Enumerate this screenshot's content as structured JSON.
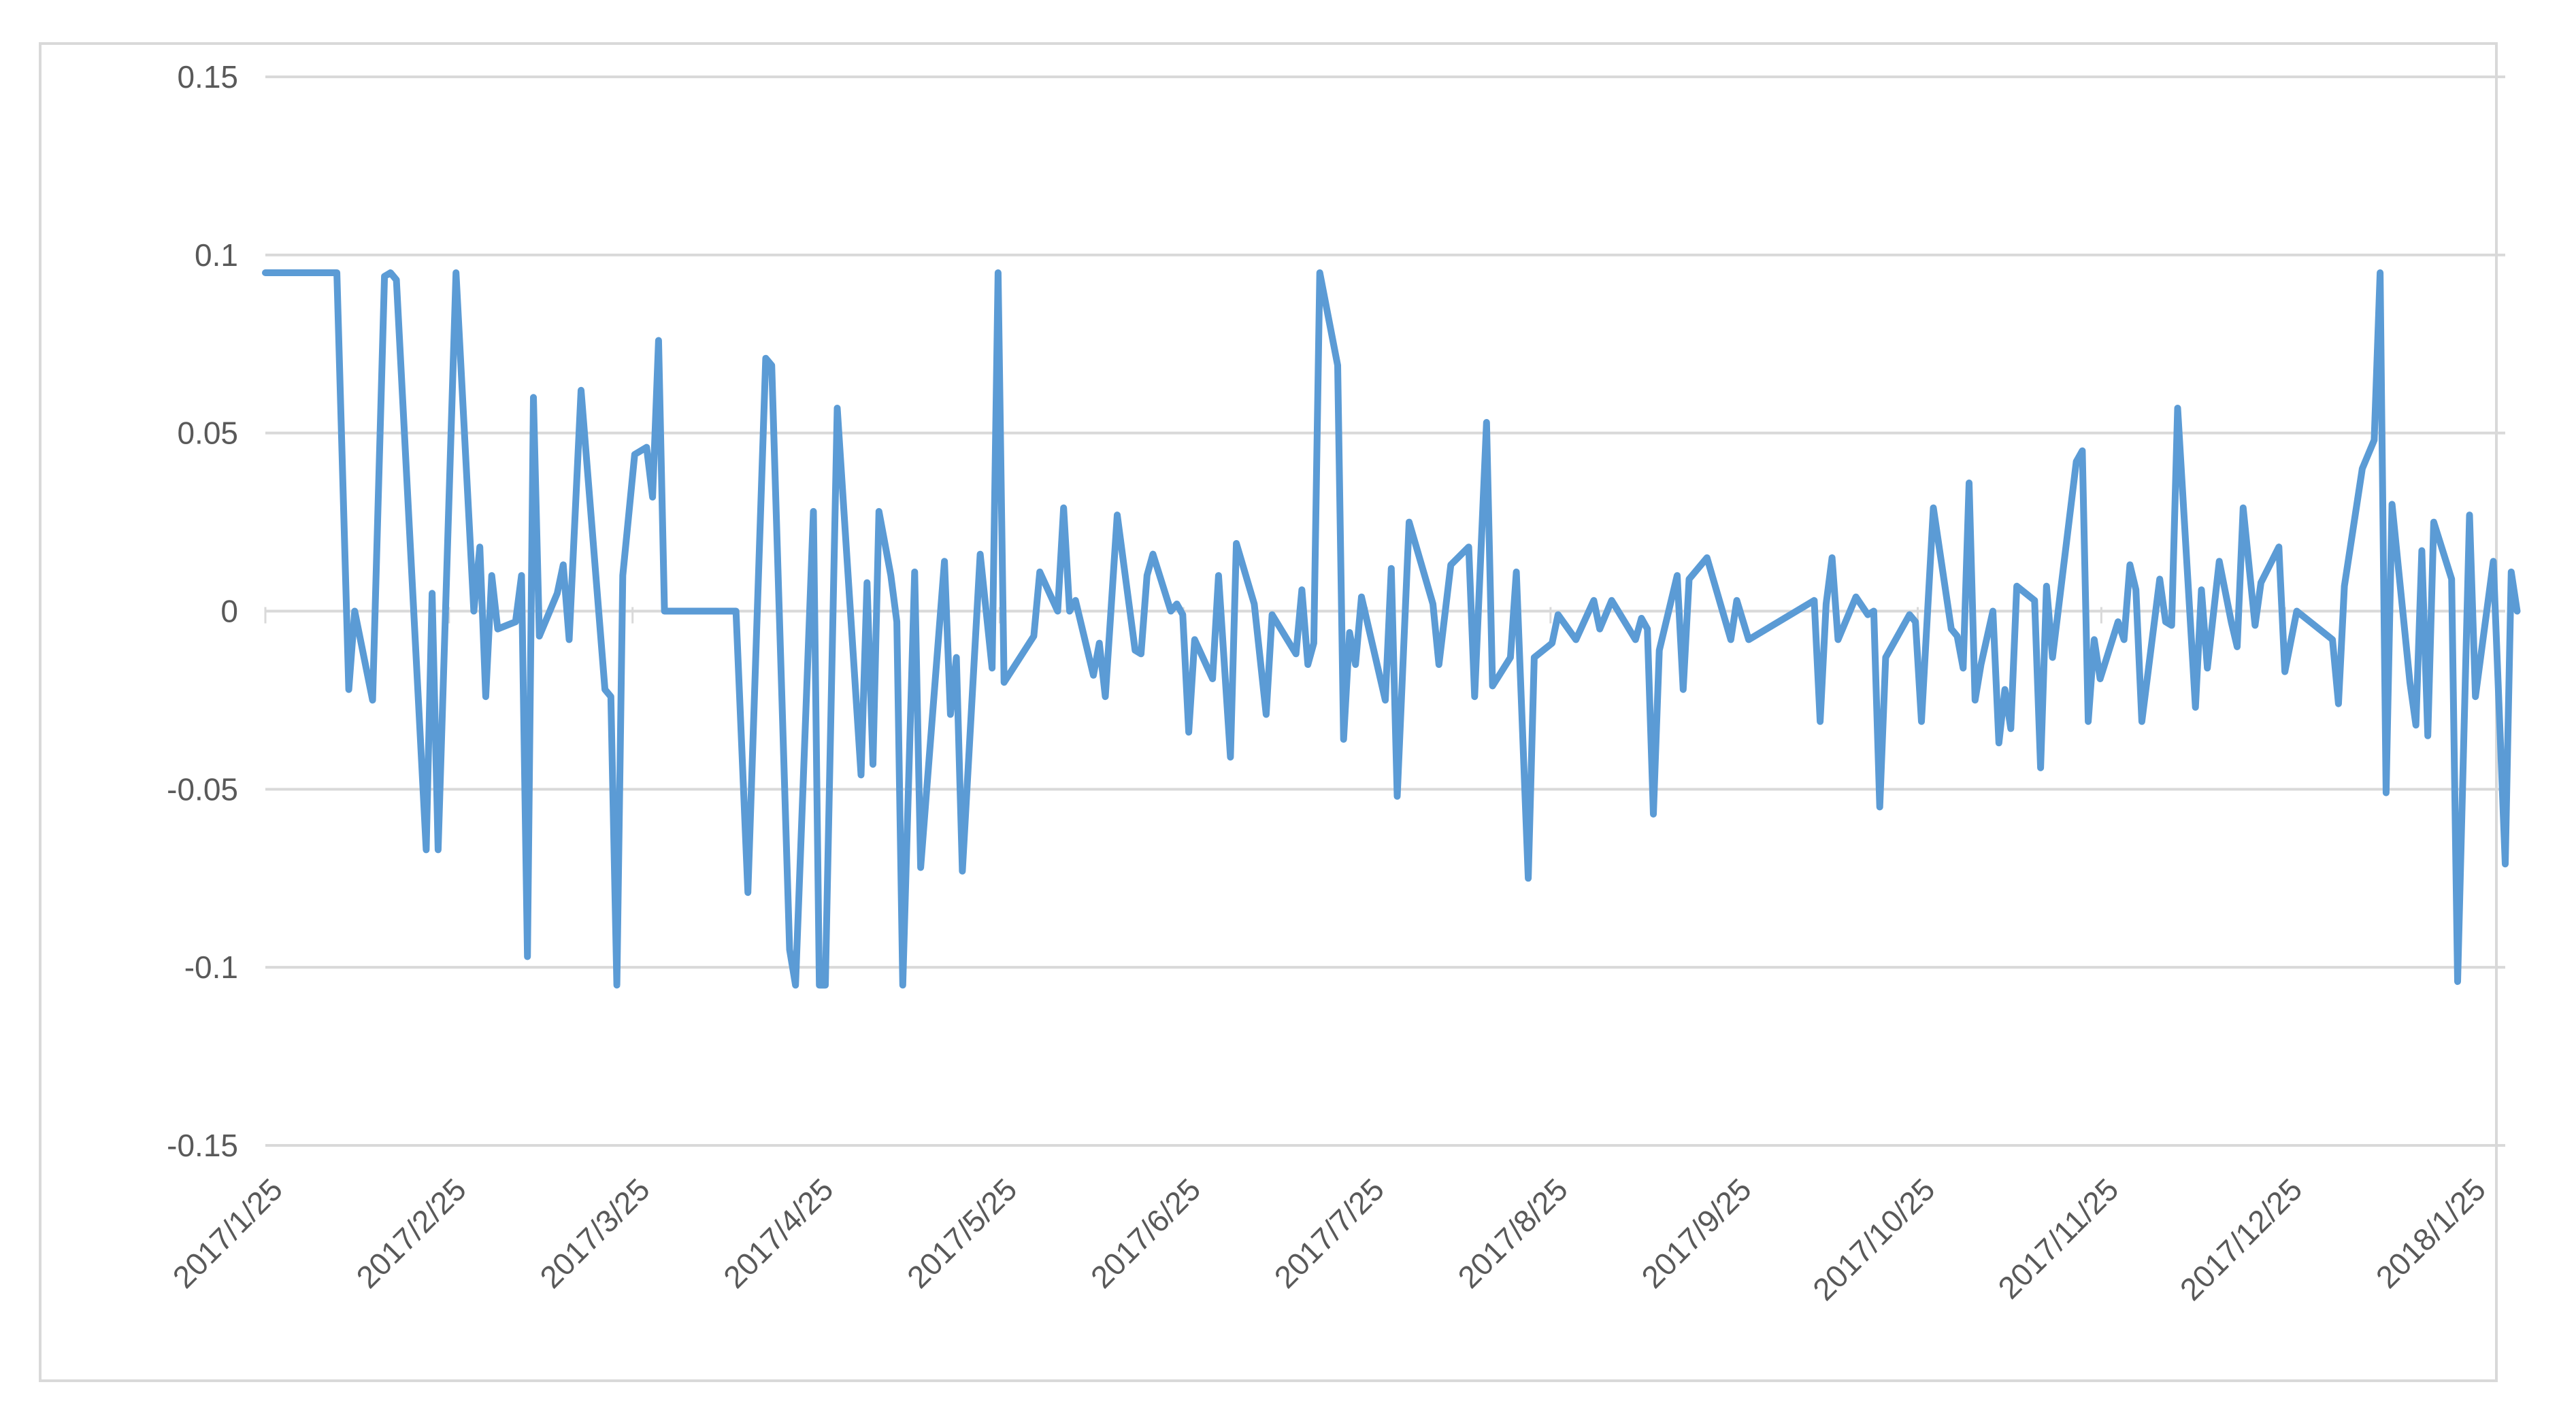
{
  "chart_data": {
    "type": "line",
    "title": "",
    "xlabel": "",
    "ylabel": "",
    "ylim": [
      -0.15,
      0.15
    ],
    "yticks": [
      "0.15",
      "0.1",
      "0.05",
      "0",
      "-0.05",
      "-0.1",
      "-0.15"
    ],
    "xtick_labels": [
      "2017/1/25",
      "2017/2/25",
      "2017/3/25",
      "2017/4/25",
      "2017/5/25",
      "2017/6/25",
      "2017/7/25",
      "2017/8/25",
      "2017/9/25",
      "2017/10/25",
      "2017/11/25",
      "2017/12/25",
      "2018/1/25"
    ],
    "xlim": [
      "2017-01-25",
      "2018-02-05"
    ],
    "grid": true,
    "legend": "none",
    "series": [
      {
        "color": "#5b9bd5",
        "points": [
          [
            "2017-01-25",
            0.095
          ],
          [
            "2017-02-06",
            0.095
          ],
          [
            "2017-02-08",
            -0.022
          ],
          [
            "2017-02-09",
            0.0
          ],
          [
            "2017-02-12",
            -0.025
          ],
          [
            "2017-02-14",
            0.094
          ],
          [
            "2017-02-15",
            0.095
          ],
          [
            "2017-02-16",
            0.093
          ],
          [
            "2017-02-21",
            -0.067
          ],
          [
            "2017-02-22",
            0.005
          ],
          [
            "2017-02-23",
            -0.067
          ],
          [
            "2017-02-26",
            0.095
          ],
          [
            "2017-03-01",
            0.0
          ],
          [
            "2017-03-02",
            0.018
          ],
          [
            "2017-03-03",
            -0.024
          ],
          [
            "2017-03-04",
            0.01
          ],
          [
            "2017-03-05",
            -0.005
          ],
          [
            "2017-03-08",
            -0.003
          ],
          [
            "2017-03-09",
            0.01
          ],
          [
            "2017-03-10",
            -0.097
          ],
          [
            "2017-03-11",
            0.06
          ],
          [
            "2017-03-12",
            -0.007
          ],
          [
            "2017-03-15",
            0.005
          ],
          [
            "2017-03-16",
            0.013
          ],
          [
            "2017-03-17",
            -0.008
          ],
          [
            "2017-03-19",
            0.062
          ],
          [
            "2017-03-23",
            -0.022
          ],
          [
            "2017-03-24",
            -0.024
          ],
          [
            "2017-03-25",
            -0.105
          ],
          [
            "2017-03-26",
            0.01
          ],
          [
            "2017-03-28",
            0.044
          ],
          [
            "2017-03-30",
            0.046
          ],
          [
            "2017-03-31",
            0.032
          ],
          [
            "2017-04-01",
            0.076
          ],
          [
            "2017-04-02",
            0.0
          ],
          [
            "2017-04-14",
            0.0
          ],
          [
            "2017-04-16",
            -0.079
          ],
          [
            "2017-04-19",
            0.071
          ],
          [
            "2017-04-20",
            0.069
          ],
          [
            "2017-04-23",
            -0.095
          ],
          [
            "2017-04-24",
            -0.105
          ],
          [
            "2017-04-27",
            0.028
          ],
          [
            "2017-04-28",
            -0.105
          ],
          [
            "2017-04-29",
            -0.105
          ],
          [
            "2017-05-01",
            0.057
          ],
          [
            "2017-05-05",
            -0.046
          ],
          [
            "2017-05-06",
            0.008
          ],
          [
            "2017-05-07",
            -0.043
          ],
          [
            "2017-05-08",
            0.028
          ],
          [
            "2017-05-10",
            0.01
          ],
          [
            "2017-05-11",
            -0.003
          ],
          [
            "2017-05-12",
            -0.105
          ],
          [
            "2017-05-14",
            0.011
          ],
          [
            "2017-05-15",
            -0.072
          ],
          [
            "2017-05-19",
            0.014
          ],
          [
            "2017-05-20",
            -0.029
          ],
          [
            "2017-05-21",
            -0.013
          ],
          [
            "2017-05-22",
            -0.073
          ],
          [
            "2017-05-25",
            0.016
          ],
          [
            "2017-05-27",
            -0.016
          ],
          [
            "2017-05-28",
            0.095
          ],
          [
            "2017-05-29",
            -0.02
          ],
          [
            "2017-06-03",
            -0.007
          ],
          [
            "2017-06-04",
            0.011
          ],
          [
            "2017-06-07",
            0.0
          ],
          [
            "2017-06-08",
            0.029
          ],
          [
            "2017-06-09",
            0.0
          ],
          [
            "2017-06-10",
            0.003
          ],
          [
            "2017-06-13",
            -0.018
          ],
          [
            "2017-06-14",
            -0.009
          ],
          [
            "2017-06-15",
            -0.024
          ],
          [
            "2017-06-17",
            0.027
          ],
          [
            "2017-06-20",
            -0.011
          ],
          [
            "2017-06-21",
            -0.012
          ],
          [
            "2017-06-22",
            0.01
          ],
          [
            "2017-06-23",
            0.016
          ],
          [
            "2017-06-26",
            0.0
          ],
          [
            "2017-06-27",
            0.002
          ],
          [
            "2017-06-28",
            -0.001
          ],
          [
            "2017-06-29",
            -0.034
          ],
          [
            "2017-06-30",
            -0.008
          ],
          [
            "2017-07-03",
            -0.019
          ],
          [
            "2017-07-04",
            0.01
          ],
          [
            "2017-07-06",
            -0.041
          ],
          [
            "2017-07-07",
            0.019
          ],
          [
            "2017-07-10",
            0.002
          ],
          [
            "2017-07-12",
            -0.029
          ],
          [
            "2017-07-13",
            -0.001
          ],
          [
            "2017-07-17",
            -0.012
          ],
          [
            "2017-07-18",
            0.006
          ],
          [
            "2017-07-19",
            -0.015
          ],
          [
            "2017-07-20",
            -0.009
          ],
          [
            "2017-07-21",
            0.095
          ],
          [
            "2017-07-24",
            0.069
          ],
          [
            "2017-07-25",
            -0.036
          ],
          [
            "2017-07-26",
            -0.006
          ],
          [
            "2017-07-27",
            -0.015
          ],
          [
            "2017-07-28",
            0.004
          ],
          [
            "2017-08-01",
            -0.025
          ],
          [
            "2017-08-02",
            0.012
          ],
          [
            "2017-08-03",
            -0.052
          ],
          [
            "2017-08-05",
            0.025
          ],
          [
            "2017-08-09",
            0.002
          ],
          [
            "2017-08-10",
            -0.015
          ],
          [
            "2017-08-12",
            0.013
          ],
          [
            "2017-08-15",
            0.018
          ],
          [
            "2017-08-16",
            -0.024
          ],
          [
            "2017-08-18",
            0.053
          ],
          [
            "2017-08-19",
            -0.021
          ],
          [
            "2017-08-22",
            -0.013
          ],
          [
            "2017-08-23",
            0.011
          ],
          [
            "2017-08-25",
            -0.075
          ],
          [
            "2017-08-26",
            -0.013
          ],
          [
            "2017-08-29",
            -0.009
          ],
          [
            "2017-08-30",
            -0.001
          ],
          [
            "2017-09-02",
            -0.008
          ],
          [
            "2017-09-05",
            0.003
          ],
          [
            "2017-09-06",
            -0.005
          ],
          [
            "2017-09-08",
            0.003
          ],
          [
            "2017-09-12",
            -0.008
          ],
          [
            "2017-09-13",
            -0.002
          ],
          [
            "2017-09-14",
            -0.005
          ],
          [
            "2017-09-15",
            -0.057
          ],
          [
            "2017-09-16",
            -0.011
          ],
          [
            "2017-09-19",
            0.01
          ],
          [
            "2017-09-20",
            -0.022
          ],
          [
            "2017-09-21",
            0.009
          ],
          [
            "2017-09-24",
            0.015
          ],
          [
            "2017-09-28",
            -0.008
          ],
          [
            "2017-09-29",
            0.003
          ],
          [
            "2017-10-01",
            -0.008
          ],
          [
            "2017-10-12",
            0.003
          ],
          [
            "2017-10-13",
            -0.031
          ],
          [
            "2017-10-14",
            0.002
          ],
          [
            "2017-10-15",
            0.015
          ],
          [
            "2017-10-16",
            -0.008
          ],
          [
            "2017-10-19",
            0.004
          ],
          [
            "2017-10-21",
            -0.001
          ],
          [
            "2017-10-22",
            0.0
          ],
          [
            "2017-10-23",
            -0.055
          ],
          [
            "2017-10-24",
            -0.013
          ],
          [
            "2017-10-28",
            -0.001
          ],
          [
            "2017-10-29",
            -0.003
          ],
          [
            "2017-10-30",
            -0.031
          ],
          [
            "2017-11-01",
            0.029
          ],
          [
            "2017-11-04",
            -0.005
          ],
          [
            "2017-11-05",
            -0.007
          ],
          [
            "2017-11-06",
            -0.016
          ],
          [
            "2017-11-07",
            0.036
          ],
          [
            "2017-11-08",
            -0.025
          ],
          [
            "2017-11-09",
            -0.015
          ],
          [
            "2017-11-11",
            0.0
          ],
          [
            "2017-11-12",
            -0.037
          ],
          [
            "2017-11-13",
            -0.022
          ],
          [
            "2017-11-14",
            -0.033
          ],
          [
            "2017-11-15",
            0.007
          ],
          [
            "2017-11-18",
            0.003
          ],
          [
            "2017-11-19",
            -0.044
          ],
          [
            "2017-11-20",
            0.007
          ],
          [
            "2017-11-21",
            -0.013
          ],
          [
            "2017-11-25",
            0.042
          ],
          [
            "2017-11-26",
            0.045
          ],
          [
            "2017-11-27",
            -0.031
          ],
          [
            "2017-11-28",
            -0.008
          ],
          [
            "2017-11-29",
            -0.019
          ],
          [
            "2017-12-02",
            -0.003
          ],
          [
            "2017-12-03",
            -0.008
          ],
          [
            "2017-12-04",
            0.013
          ],
          [
            "2017-12-05",
            0.006
          ],
          [
            "2017-12-06",
            -0.031
          ],
          [
            "2017-12-09",
            0.009
          ],
          [
            "2017-12-10",
            -0.003
          ],
          [
            "2017-12-11",
            -0.004
          ],
          [
            "2017-12-12",
            0.057
          ],
          [
            "2017-12-15",
            -0.027
          ],
          [
            "2017-12-16",
            0.006
          ],
          [
            "2017-12-17",
            -0.016
          ],
          [
            "2017-12-19",
            0.014
          ],
          [
            "2017-12-21",
            -0.003
          ],
          [
            "2017-12-22",
            -0.01
          ],
          [
            "2017-12-23",
            0.029
          ],
          [
            "2017-12-25",
            -0.004
          ],
          [
            "2017-12-26",
            0.008
          ],
          [
            "2017-12-29",
            0.018
          ],
          [
            "2017-12-30",
            -0.017
          ],
          [
            "2018-01-01",
            0.0
          ],
          [
            "2018-01-07",
            -0.008
          ],
          [
            "2018-01-08",
            -0.026
          ],
          [
            "2018-01-09",
            0.007
          ],
          [
            "2018-01-12",
            0.04
          ],
          [
            "2018-01-14",
            0.048
          ],
          [
            "2018-01-15",
            0.095
          ],
          [
            "2018-01-16",
            -0.051
          ],
          [
            "2018-01-17",
            0.03
          ],
          [
            "2018-01-20",
            -0.02
          ],
          [
            "2018-01-21",
            -0.032
          ],
          [
            "2018-01-22",
            0.017
          ],
          [
            "2018-01-23",
            -0.035
          ],
          [
            "2018-01-24",
            0.025
          ],
          [
            "2018-01-27",
            0.009
          ],
          [
            "2018-01-28",
            -0.104
          ],
          [
            "2018-01-30",
            0.027
          ],
          [
            "2018-01-31",
            -0.024
          ],
          [
            "2018-02-03",
            0.014
          ],
          [
            "2018-02-05",
            -0.071
          ],
          [
            "2018-02-06",
            0.011
          ],
          [
            "2018-02-07",
            0.0
          ]
        ]
      }
    ]
  }
}
